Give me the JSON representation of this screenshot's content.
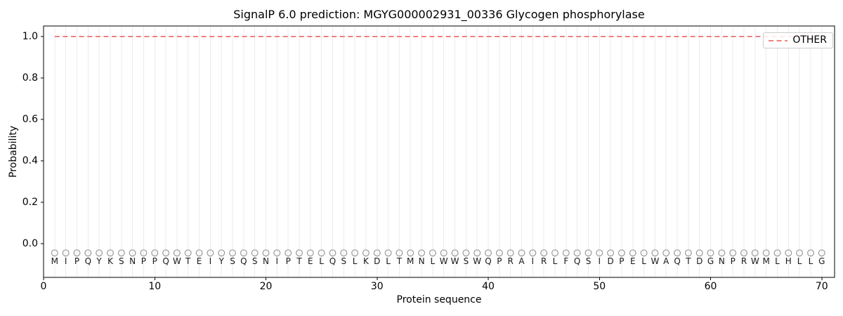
{
  "figure": {
    "title": "SignalP 6.0 prediction: MGYG000002931_00336 Glycogen phosphorylase",
    "xlabel": "Protein sequence",
    "ylabel": "Probability",
    "background": "#ffffff"
  },
  "legend": {
    "position": "upper right",
    "entries": [
      {
        "label": "OTHER",
        "color": "#f08080",
        "line_style": "dashed"
      }
    ]
  },
  "chart_data": {
    "type": "line",
    "title": "SignalP 6.0 prediction: MGYG000002931_00336 Glycogen phosphorylase",
    "xlabel": "Protein sequence",
    "ylabel": "Probability",
    "xlim": [
      0,
      71.15
    ],
    "ylim": [
      -0.163,
      1.051
    ],
    "x_ticks": [
      "0",
      "10",
      "20",
      "30",
      "40",
      "50",
      "60",
      "70"
    ],
    "y_ticks": [
      "0.0",
      "0.2",
      "0.4",
      "0.6",
      "0.8",
      "1.0"
    ],
    "grid": {
      "vertical_per_residue": true,
      "color": "#ebebeb"
    },
    "legend_position": "upper right",
    "sequence": "MIPQYKSNPPQWTEIYSQSNIPTELQSLKDLTMNLWWSWQPRAIRLFQSIDPELWAQTDGNPRWMLHLLG",
    "series": [
      {
        "name": "OTHER",
        "color": "#f08080",
        "line_style": "dashed",
        "line_width": 2,
        "x": [
          1,
          2,
          3,
          4,
          5,
          6,
          7,
          8,
          9,
          10,
          11,
          12,
          13,
          14,
          15,
          16,
          17,
          18,
          19,
          20,
          21,
          22,
          23,
          24,
          25,
          26,
          27,
          28,
          29,
          30,
          31,
          32,
          33,
          34,
          35,
          36,
          37,
          38,
          39,
          40,
          41,
          42,
          43,
          44,
          45,
          46,
          47,
          48,
          49,
          50,
          51,
          52,
          53,
          54,
          55,
          56,
          57,
          58,
          59,
          60,
          61,
          62,
          63,
          64,
          65,
          66,
          67,
          68,
          69,
          70
        ],
        "values": [
          1,
          1,
          1,
          1,
          1,
          1,
          1,
          1,
          1,
          1,
          1,
          1,
          1,
          1,
          1,
          1,
          1,
          1,
          1,
          1,
          1,
          1,
          1,
          1,
          1,
          1,
          1,
          1,
          1,
          1,
          1,
          1,
          1,
          1,
          1,
          1,
          1,
          1,
          1,
          1,
          1,
          1,
          1,
          1,
          1,
          1,
          1,
          1,
          1,
          1,
          1,
          1,
          1,
          1,
          1,
          1,
          1,
          1,
          1,
          1,
          1,
          1,
          1,
          1,
          1,
          1,
          1,
          1,
          1,
          1
        ]
      }
    ],
    "residue_markers": {
      "symbol": "open-circle",
      "color": "#9a9a9a",
      "y": -0.045,
      "radius": 4.4
    },
    "residue_letters": {
      "color": "#1a1a1a",
      "y": -0.085
    }
  }
}
